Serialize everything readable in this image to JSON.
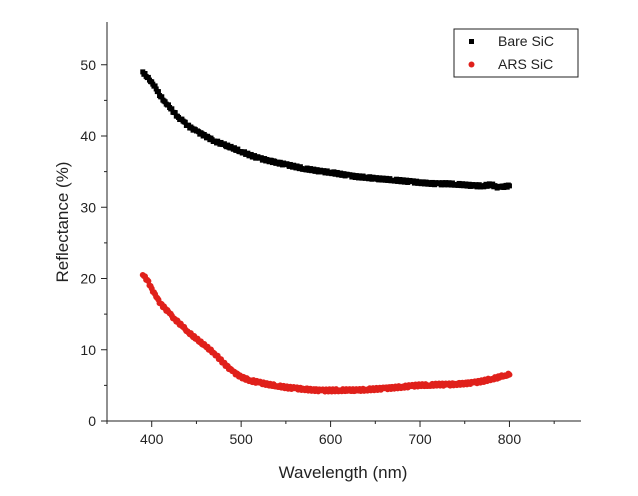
{
  "chart_data": {
    "type": "scatter",
    "title": "",
    "xlabel": "Wavelength (nm)",
    "ylabel": "Reflectance (%)",
    "xlim": [
      350,
      880
    ],
    "ylim": [
      0,
      56
    ],
    "xticks": [
      400,
      500,
      600,
      700,
      800
    ],
    "yticks": [
      0,
      10,
      20,
      30,
      40,
      50
    ],
    "grid": false,
    "legend_position": "top-right",
    "series": [
      {
        "name": "Bare SiC",
        "marker": "square",
        "color": "#000000",
        "x": [
          390,
          395,
          400,
          405,
          410,
          415,
          420,
          425,
          430,
          435,
          440,
          445,
          450,
          460,
          470,
          480,
          490,
          500,
          510,
          520,
          530,
          540,
          550,
          560,
          570,
          580,
          590,
          600,
          610,
          620,
          630,
          640,
          650,
          660,
          670,
          680,
          690,
          700,
          710,
          720,
          730,
          740,
          750,
          760,
          770,
          780,
          785,
          790,
          795,
          800
        ],
        "y": [
          49.0,
          48.2,
          47.6,
          46.6,
          45.5,
          44.8,
          44.0,
          43.3,
          42.6,
          42.1,
          41.5,
          41.1,
          40.7,
          40.0,
          39.3,
          38.8,
          38.3,
          37.8,
          37.3,
          36.9,
          36.6,
          36.3,
          36.0,
          35.7,
          35.4,
          35.2,
          35.0,
          34.9,
          34.7,
          34.5,
          34.3,
          34.2,
          34.0,
          33.9,
          33.8,
          33.7,
          33.6,
          33.5,
          33.4,
          33.3,
          33.3,
          33.2,
          33.1,
          33.0,
          33.0,
          33.2,
          32.9,
          32.8,
          33.0,
          33.0
        ]
      },
      {
        "name": "ARS SiC",
        "marker": "circle",
        "color": "#e0201b",
        "x": [
          390,
          395,
          400,
          405,
          410,
          415,
          420,
          425,
          430,
          435,
          440,
          445,
          450,
          460,
          470,
          480,
          490,
          500,
          510,
          520,
          530,
          540,
          550,
          560,
          570,
          580,
          590,
          600,
          610,
          620,
          630,
          640,
          650,
          660,
          670,
          680,
          690,
          700,
          710,
          720,
          730,
          740,
          750,
          760,
          770,
          780,
          785,
          790,
          795,
          800
        ],
        "y": [
          20.5,
          19.8,
          18.6,
          17.4,
          16.5,
          15.8,
          15.1,
          14.4,
          13.8,
          13.2,
          12.6,
          12.0,
          11.5,
          10.5,
          9.5,
          8.2,
          7.0,
          6.2,
          5.7,
          5.4,
          5.1,
          4.9,
          4.7,
          4.6,
          4.5,
          4.4,
          4.3,
          4.3,
          4.3,
          4.3,
          4.3,
          4.4,
          4.5,
          4.6,
          4.7,
          4.8,
          4.9,
          5.0,
          5.0,
          5.1,
          5.1,
          5.2,
          5.3,
          5.4,
          5.6,
          5.9,
          6.0,
          6.2,
          6.4,
          6.5
        ]
      }
    ]
  }
}
